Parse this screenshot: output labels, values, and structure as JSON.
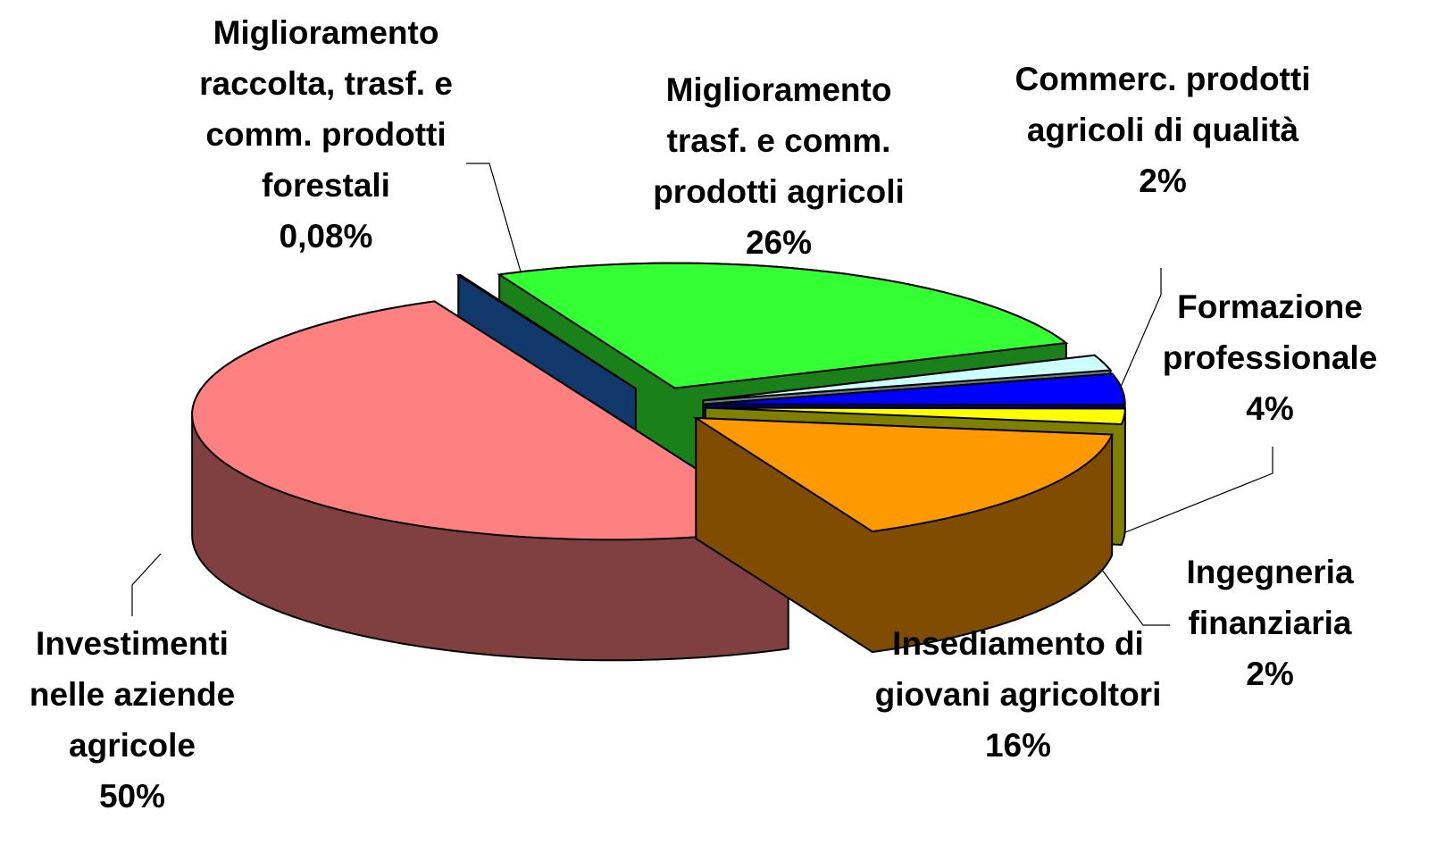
{
  "chart_data": {
    "type": "pie3d",
    "categories": [
      "Miglioramento raccolta, trasf. e comm. prodotti forestali",
      "Miglioramento trasf. e comm. prodotti agricoli",
      "Commerc. prodotti agricoli di qualità",
      "Formazione professionale",
      "Ingegneria finanziaria",
      "Insediamento di giovani agricoltori",
      "Investimenti nelle aziende agricole"
    ],
    "values": [
      0.08,
      26,
      2,
      4,
      2,
      16,
      50
    ],
    "value_labels": [
      "0,08%",
      "26%",
      "2%",
      "4%",
      "2%",
      "16%",
      "50%"
    ],
    "colors": [
      "#1f6fd6",
      "#33ff33",
      "#ccffff",
      "#0000ff",
      "#ffff00",
      "#ff9900",
      "#ff8080"
    ]
  }
}
